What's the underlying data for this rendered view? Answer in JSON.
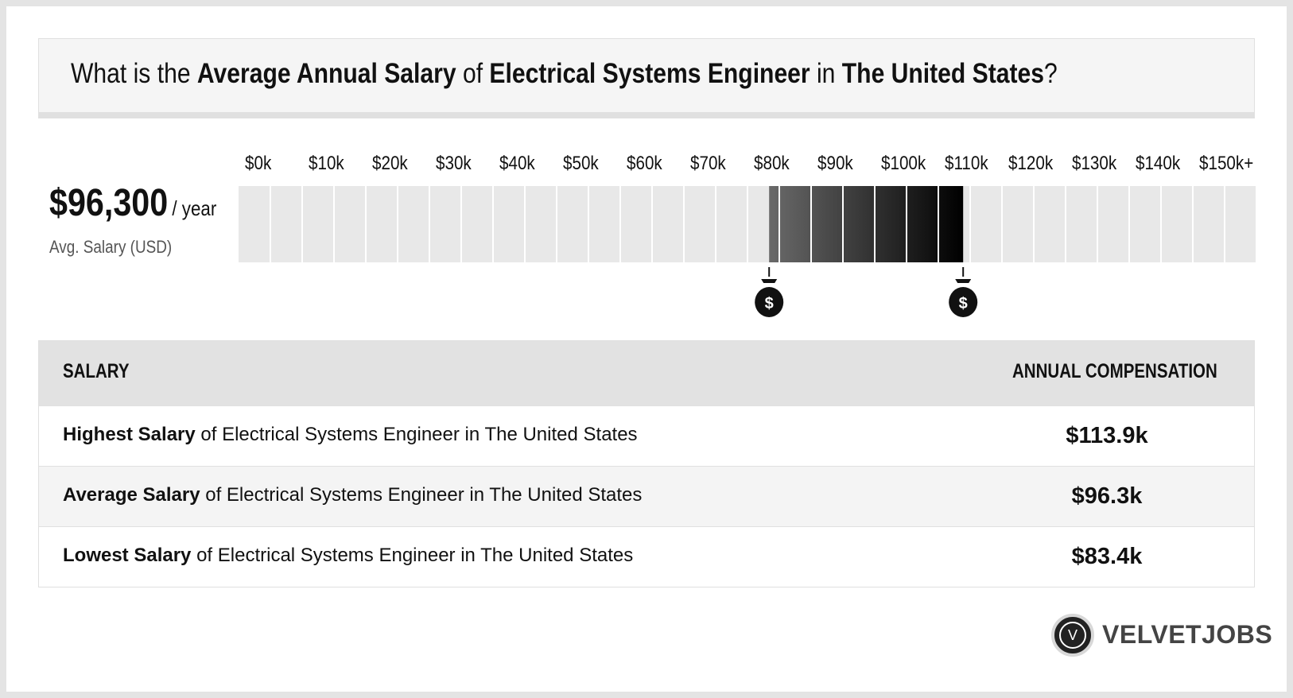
{
  "title": {
    "p1": "What is the ",
    "b1": "Average Annual Salary",
    "p2": " of ",
    "b2": "Electrical Systems Engineer",
    "p3": " in ",
    "b3": "The United States",
    "p4": "?"
  },
  "summary": {
    "amount": "$96,300",
    "per": "/ year",
    "label": "Avg. Salary (USD)"
  },
  "chart_data": {
    "type": "bar",
    "tick_labels": [
      "$0k",
      "$10k",
      "$20k",
      "$30k",
      "$40k",
      "$50k",
      "$60k",
      "$70k",
      "$80k",
      "$90k",
      "$100k",
      "$110k",
      "$120k",
      "$130k",
      "$140k",
      "$150k+"
    ],
    "x_range": [
      0,
      160000
    ],
    "segment_width": 5000,
    "range_low": 83400,
    "range_high": 113900,
    "average": 96300,
    "colors": {
      "empty": "#e8e8e8",
      "range_start": "#6a6a6a",
      "range_end": "#000000",
      "marker": "#111111"
    }
  },
  "table": {
    "header_left": "SALARY",
    "header_right": "ANNUAL COMPENSATION",
    "rows": [
      {
        "bold": "Highest Salary",
        "rest": " of Electrical Systems Engineer in The United States",
        "value": "$113.9k"
      },
      {
        "bold": "Average Salary",
        "rest": " of Electrical Systems Engineer in The United States",
        "value": "$96.3k"
      },
      {
        "bold": "Lowest Salary",
        "rest": " of Electrical Systems Engineer in The United States",
        "value": "$83.4k"
      }
    ]
  },
  "logo": {
    "letter": "V",
    "text": "VELVETJOBS"
  }
}
